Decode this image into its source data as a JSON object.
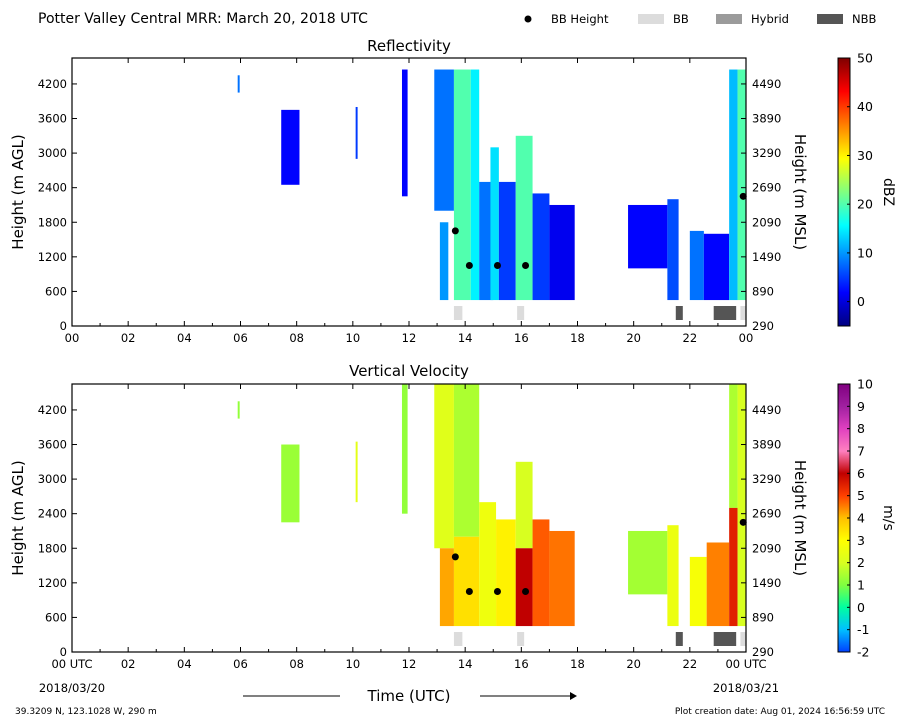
{
  "header": {
    "title": "Potter Valley Central MRR:  March 20, 2018 UTC",
    "legend": [
      {
        "label": "BB Height",
        "kind": "dot",
        "color": "#000000"
      },
      {
        "label": "BB",
        "kind": "box",
        "color": "#dcdcdc"
      },
      {
        "label": "Hybrid",
        "kind": "box",
        "color": "#9b9b9b"
      },
      {
        "label": "NBB",
        "kind": "box",
        "color": "#555555"
      }
    ]
  },
  "footer": {
    "location": "39.3209 N, 123.1028 W, 290 m",
    "creation": "Plot creation date: Aug 01, 2024 16:56:59 UTC",
    "xlabel": "Time (UTC)",
    "date_start": "2018/03/20",
    "date_end": "2018/03/21"
  },
  "chart_data": [
    {
      "type": "heatmap",
      "title": "Reflectivity",
      "ylabel": "Height (m AGL)",
      "ylabel_right": "Height (m MSL)",
      "xlim": [
        0,
        24
      ],
      "ylim": [
        0,
        4650
      ],
      "x_ticks": [
        "00",
        "02",
        "04",
        "06",
        "08",
        "10",
        "12",
        "14",
        "16",
        "18",
        "20",
        "22",
        "00"
      ],
      "y_ticks": [
        0,
        600,
        1200,
        1800,
        2400,
        3000,
        3600,
        4200
      ],
      "y_ticks_right": [
        290,
        890,
        1490,
        2090,
        2690,
        3290,
        3890,
        4490
      ],
      "colorbar": {
        "label": "dBZ",
        "min": -5,
        "max": 50,
        "ticks": [
          0,
          10,
          20,
          30,
          40,
          50
        ],
        "colors": [
          "#00007f",
          "#0000ff",
          "#0080ff",
          "#00ffff",
          "#80ff80",
          "#ffff00",
          "#ff8000",
          "#ff0000",
          "#7f0000"
        ]
      },
      "bb_height_m": [
        {
          "time": 13.65,
          "height": 1650
        },
        {
          "time": 14.15,
          "height": 1050
        },
        {
          "time": 15.15,
          "height": 1050
        },
        {
          "time": 16.15,
          "height": 1050
        },
        {
          "time": 23.9,
          "height": 2250
        }
      ],
      "bb_types": [
        {
          "start": 13.6,
          "end": 13.9,
          "type": "BB"
        },
        {
          "start": 15.85,
          "end": 16.1,
          "type": "BB"
        },
        {
          "start": 21.5,
          "end": 21.75,
          "type": "NBB"
        },
        {
          "start": 22.85,
          "end": 23.65,
          "type": "NBB"
        },
        {
          "start": 23.8,
          "end": 24,
          "type": "BB"
        }
      ],
      "echo_regions": [
        {
          "t0": 5.9,
          "t1": 5.97,
          "z0": 4050,
          "z1": 4350,
          "value": 8
        },
        {
          "t0": 7.45,
          "t1": 8.1,
          "z0": 2450,
          "z1": 3750,
          "value": 2
        },
        {
          "t0": 10.1,
          "t1": 10.17,
          "z0": 2900,
          "z1": 3800,
          "value": 5
        },
        {
          "t0": 11.75,
          "t1": 11.95,
          "z0": 2250,
          "z1": 4450,
          "value": 2
        },
        {
          "t0": 12.9,
          "t1": 13.6,
          "z0": 2000,
          "z1": 4450,
          "value": 8
        },
        {
          "t0": 13.1,
          "t1": 13.4,
          "z0": 450,
          "z1": 1800,
          "value": 10
        },
        {
          "t0": 13.6,
          "t1": 14.2,
          "z0": 450,
          "z1": 4450,
          "value": 20
        },
        {
          "t0": 14.2,
          "t1": 14.5,
          "z0": 450,
          "z1": 4450,
          "value": 15
        },
        {
          "t0": 14.5,
          "t1": 15.0,
          "z0": 450,
          "z1": 2500,
          "value": 8
        },
        {
          "t0": 14.9,
          "t1": 15.2,
          "z0": 450,
          "z1": 3100,
          "value": 14
        },
        {
          "t0": 15.2,
          "t1": 15.8,
          "z0": 450,
          "z1": 2500,
          "value": 5
        },
        {
          "t0": 15.8,
          "t1": 16.4,
          "z0": 450,
          "z1": 3300,
          "value": 20
        },
        {
          "t0": 16.4,
          "t1": 17.0,
          "z0": 450,
          "z1": 2300,
          "value": 5
        },
        {
          "t0": 17.0,
          "t1": 17.9,
          "z0": 450,
          "z1": 2100,
          "value": 1
        },
        {
          "t0": 19.8,
          "t1": 21.2,
          "z0": 1000,
          "z1": 2100,
          "value": 2
        },
        {
          "t0": 21.2,
          "t1": 21.6,
          "z0": 450,
          "z1": 2200,
          "value": 6
        },
        {
          "t0": 22.0,
          "t1": 22.5,
          "z0": 450,
          "z1": 1650,
          "value": 8
        },
        {
          "t0": 22.5,
          "t1": 23.4,
          "z0": 450,
          "z1": 1600,
          "value": 2
        },
        {
          "t0": 23.4,
          "t1": 23.7,
          "z0": 450,
          "z1": 4450,
          "value": 12
        },
        {
          "t0": 23.7,
          "t1": 24.0,
          "z0": 450,
          "z1": 4450,
          "value": 20
        }
      ]
    },
    {
      "type": "heatmap",
      "title": "Vertical Velocity",
      "ylabel": "Height (m AGL)",
      "ylabel_right": "Height (m MSL)",
      "xlim": [
        0,
        24
      ],
      "ylim": [
        0,
        4650
      ],
      "x_ticks": [
        "00 UTC",
        "02",
        "04",
        "06",
        "08",
        "10",
        "12",
        "14",
        "16",
        "18",
        "20",
        "22",
        "00 UTC"
      ],
      "y_ticks": [
        0,
        600,
        1200,
        1800,
        2400,
        3000,
        3600,
        4200
      ],
      "y_ticks_right": [
        290,
        890,
        1490,
        2090,
        2690,
        3290,
        3890,
        4490
      ],
      "colorbar": {
        "label": "m/s",
        "min": -2,
        "max": 10,
        "ticks": [
          -2,
          -1,
          0,
          1,
          2,
          3,
          4,
          5,
          6,
          7,
          8,
          9,
          10
        ],
        "colors": [
          "#0040ff",
          "#00c0ff",
          "#00ffa0",
          "#80ff40",
          "#d8ff20",
          "#ffff00",
          "#ffc000",
          "#ff4000",
          "#c00000",
          "#ff80c0",
          "#e040c0",
          "#a020a0",
          "#800080"
        ]
      },
      "bb_height_m": [
        {
          "time": 13.65,
          "height": 1650
        },
        {
          "time": 14.15,
          "height": 1050
        },
        {
          "time": 15.15,
          "height": 1050
        },
        {
          "time": 16.15,
          "height": 1050
        },
        {
          "time": 23.9,
          "height": 2250
        }
      ],
      "bb_types": [
        {
          "start": 13.6,
          "end": 13.9,
          "type": "BB"
        },
        {
          "start": 15.85,
          "end": 16.1,
          "type": "BB"
        },
        {
          "start": 21.5,
          "end": 21.75,
          "type": "NBB"
        },
        {
          "start": 22.85,
          "end": 23.65,
          "type": "NBB"
        },
        {
          "start": 23.8,
          "end": 24,
          "type": "BB"
        }
      ],
      "echo_regions": [
        {
          "t0": 5.9,
          "t1": 5.97,
          "z0": 4050,
          "z1": 4350,
          "value": 1.2
        },
        {
          "t0": 7.45,
          "t1": 8.1,
          "z0": 2250,
          "z1": 3600,
          "value": 1.3
        },
        {
          "t0": 10.1,
          "t1": 10.17,
          "z0": 2600,
          "z1": 3650,
          "value": 2.3
        },
        {
          "t0": 11.75,
          "t1": 11.95,
          "z0": 2400,
          "z1": 4650,
          "value": 1.2
        },
        {
          "t0": 12.9,
          "t1": 13.6,
          "z0": 1800,
          "z1": 4650,
          "value": 2.2
        },
        {
          "t0": 13.1,
          "t1": 13.6,
          "z0": 450,
          "z1": 1800,
          "value": 4.2
        },
        {
          "t0": 13.6,
          "t1": 14.5,
          "z0": 2000,
          "z1": 4650,
          "value": 1.5
        },
        {
          "t0": 13.6,
          "t1": 14.5,
          "z0": 450,
          "z1": 2000,
          "value": 3.5
        },
        {
          "t0": 14.5,
          "t1": 15.1,
          "z0": 450,
          "z1": 2600,
          "value": 2.6
        },
        {
          "t0": 15.1,
          "t1": 15.8,
          "z0": 450,
          "z1": 2300,
          "value": 3.2
        },
        {
          "t0": 15.8,
          "t1": 16.4,
          "z0": 1800,
          "z1": 3300,
          "value": 2.0
        },
        {
          "t0": 15.8,
          "t1": 16.4,
          "z0": 450,
          "z1": 1800,
          "value": 6.0
        },
        {
          "t0": 16.4,
          "t1": 17.0,
          "z0": 450,
          "z1": 2300,
          "value": 4.8
        },
        {
          "t0": 17.0,
          "t1": 17.9,
          "z0": 450,
          "z1": 2100,
          "value": 4.6
        },
        {
          "t0": 19.8,
          "t1": 21.2,
          "z0": 1000,
          "z1": 2100,
          "value": 1.4
        },
        {
          "t0": 21.2,
          "t1": 21.6,
          "z0": 450,
          "z1": 2200,
          "value": 2.5
        },
        {
          "t0": 22.0,
          "t1": 22.6,
          "z0": 450,
          "z1": 1650,
          "value": 2.8
        },
        {
          "t0": 22.6,
          "t1": 23.4,
          "z0": 450,
          "z1": 1900,
          "value": 4.5
        },
        {
          "t0": 23.4,
          "t1": 23.7,
          "z0": 2500,
          "z1": 4650,
          "value": 1.5
        },
        {
          "t0": 23.4,
          "t1": 23.7,
          "z0": 450,
          "z1": 2500,
          "value": 5.5
        },
        {
          "t0": 23.7,
          "t1": 24.0,
          "z0": 450,
          "z1": 4650,
          "value": 2.0
        }
      ]
    }
  ]
}
